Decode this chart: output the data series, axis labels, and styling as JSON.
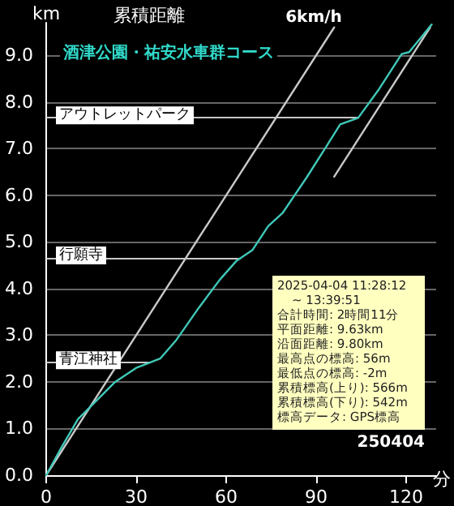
{
  "chart_data": {
    "type": "line",
    "title": "累積距離",
    "subtitle": "酒津公園・祐安水車群コース",
    "xlabel": "分",
    "ylabel": "km",
    "annotations": [
      "2025-04-04 11:28:12",
      "~ 13:39:51",
      "合計時間: 2時間11分",
      "平面距離: 9.63km",
      "沿面距離: 9.80km",
      "最高点の標高: 56m",
      "最低点の標高: -2m",
      "累積標高(上り): 566m",
      "累積標高(下り): 542m",
      "標高データ: GPS標高",
      "250404"
    ],
    "series": [
      {
        "color": "#40c8b8",
        "x": [
          0,
          5.3,
          10.6,
          16,
          23,
          30,
          34.4,
          38,
          43.4,
          51,
          58,
          63.5,
          68.8,
          74,
          78.8,
          86.8,
          93.6,
          98,
          104,
          111,
          118.5,
          121,
          128.5
        ],
        "values": [
          0,
          0.62,
          1.2,
          1.55,
          2.0,
          2.3,
          2.41,
          2.5,
          2.9,
          3.6,
          4.2,
          4.6,
          4.83,
          5.34,
          5.62,
          6.38,
          7.07,
          7.52,
          7.66,
          8.28,
          9.03,
          9.07,
          9.66
        ]
      },
      {
        "name": "6km/h",
        "color": "#c8c8c8",
        "x": [
          0,
          96
        ],
        "values": [
          0,
          9.6
        ]
      },
      {
        "color": "#c8c8c8",
        "x": [
          96,
          128
        ],
        "values": [
          6.4,
          9.6
        ]
      }
    ],
    "ref_lines": [
      {
        "axis": "y",
        "value": 7.66,
        "label": "アウトレットパーク",
        "color": "#c8c8c8"
      },
      {
        "axis": "y",
        "value": 4.66,
        "label": "行願寺",
        "color": "#c8c8c8"
      },
      {
        "axis": "y",
        "value": 2.41,
        "label": "青江神社",
        "color": "#c8c8c8"
      }
    ],
    "xlim": [
      0,
      130
    ],
    "xticks": [
      0,
      30,
      60,
      90,
      120
    ],
    "ylim": [
      0,
      9.7
    ],
    "yticks": [
      {
        "value": 0,
        "label": "0.0"
      },
      {
        "value": 1,
        "label": "1.0"
      },
      {
        "value": 2,
        "label": "2.0"
      },
      {
        "value": 3,
        "label": "3.0"
      },
      {
        "value": 4,
        "label": "4.0"
      },
      {
        "value": 5,
        "label": "5.0"
      },
      {
        "value": 6,
        "label": "6.0"
      },
      {
        "value": 7,
        "label": "7.0"
      },
      {
        "value": 8,
        "label": "8.0"
      },
      {
        "value": 9,
        "label": "9.0"
      }
    ],
    "grid": "y",
    "legend": false,
    "marker": "none",
    "line_style": "solid"
  }
}
